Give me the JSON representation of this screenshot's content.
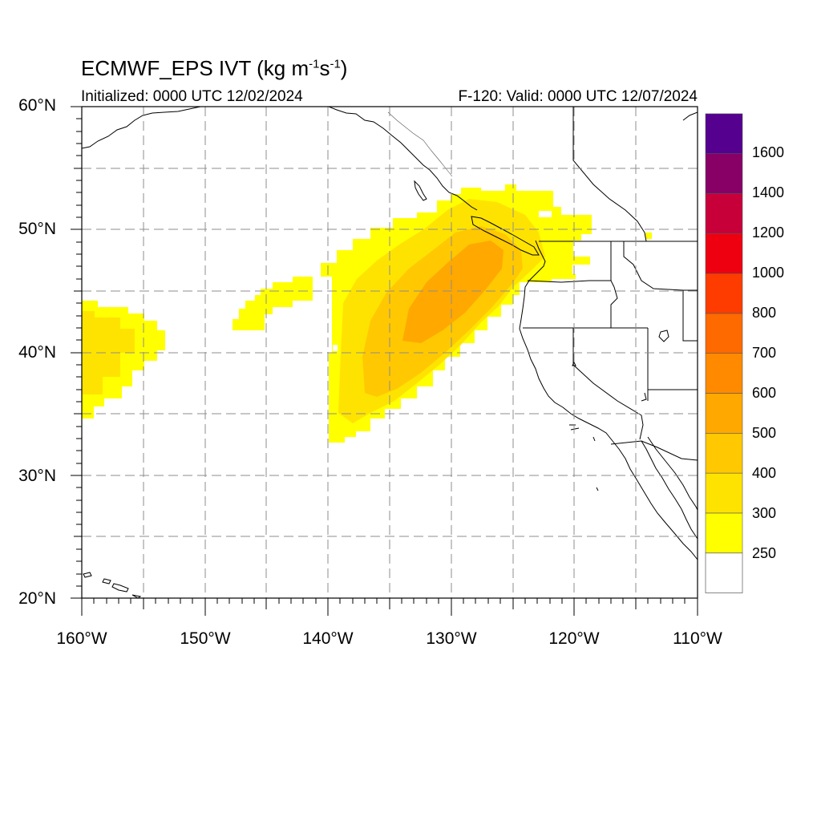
{
  "title": {
    "main": "ECMWF_EPS IVT (kg m",
    "sup1": "-1",
    "mid": "s",
    "sup2": "-1",
    "end": ")"
  },
  "subtitle": {
    "initialized": "Initialized: 0000 UTC 12/02/2024",
    "valid": "F-120: Valid: 0000 UTC 12/07/2024"
  },
  "map": {
    "lon_range": [
      -160,
      -110
    ],
    "lat_range": [
      20,
      60
    ],
    "lat_labels": [
      "60°N",
      "50°N",
      "40°N",
      "30°N",
      "20°N"
    ],
    "lon_labels": [
      "160°W",
      "150°W",
      "140°W",
      "130°W",
      "120°W",
      "110°W"
    ],
    "gridlines": "dashed every 5°"
  },
  "colorbar": {
    "labels": [
      "1600",
      "1400",
      "1200",
      "1000",
      "800",
      "700",
      "600",
      "500",
      "400",
      "300",
      "250"
    ],
    "levels": [
      {
        "min": 250,
        "color": "#ffff00"
      },
      {
        "min": 300,
        "color": "#ffe300"
      },
      {
        "min": 400,
        "color": "#ffc800"
      },
      {
        "min": 500,
        "color": "#ffa800"
      },
      {
        "min": 600,
        "color": "#ff8a00"
      },
      {
        "min": 700,
        "color": "#ff6a00"
      },
      {
        "min": 800,
        "color": "#ff3c00"
      },
      {
        "min": 1000,
        "color": "#ee0011"
      },
      {
        "min": 1200,
        "color": "#c8003a"
      },
      {
        "min": 1400,
        "color": "#880066"
      },
      {
        "min": 1600,
        "color": "#55008f"
      }
    ]
  }
}
